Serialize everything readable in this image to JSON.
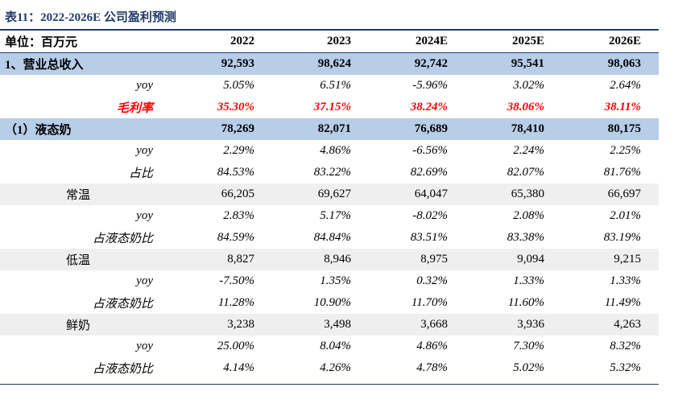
{
  "caption": "表11：2022-2026E 公司盈利预测",
  "header": [
    "单位：百万元",
    "2022",
    "2023",
    "2024E",
    "2025E",
    "2026E"
  ],
  "rows": [
    {
      "label": "1、营业总收入",
      "values": [
        "92,593",
        "98,624",
        "92,742",
        "95,541",
        "98,063"
      ]
    },
    {
      "label": "yoy",
      "values": [
        "5.05%",
        "6.51%",
        "-5.96%",
        "3.02%",
        "2.64%"
      ]
    },
    {
      "label": "毛利率",
      "values": [
        "35.30%",
        "37.15%",
        "38.24%",
        "38.06%",
        "38.11%"
      ]
    },
    {
      "label": "（1）液态奶",
      "values": [
        "78,269",
        "82,071",
        "76,689",
        "78,410",
        "80,175"
      ]
    },
    {
      "label": "yoy",
      "values": [
        "2.29%",
        "4.86%",
        "-6.56%",
        "2.24%",
        "2.25%"
      ]
    },
    {
      "label": "占比",
      "values": [
        "84.53%",
        "83.22%",
        "82.69%",
        "82.07%",
        "81.76%"
      ]
    },
    {
      "label": "常温",
      "values": [
        "66,205",
        "69,627",
        "64,047",
        "65,380",
        "66,697"
      ]
    },
    {
      "label": "yoy",
      "values": [
        "2.83%",
        "5.17%",
        "-8.02%",
        "2.08%",
        "2.01%"
      ]
    },
    {
      "label": "占液态奶比",
      "values": [
        "84.59%",
        "84.84%",
        "83.51%",
        "83.38%",
        "83.19%"
      ]
    },
    {
      "label": "低温",
      "values": [
        "8,827",
        "8,946",
        "8,975",
        "9,094",
        "9,215"
      ]
    },
    {
      "label": "yoy",
      "values": [
        "-7.50%",
        "1.35%",
        "0.32%",
        "1.33%",
        "1.33%"
      ]
    },
    {
      "label": "占液态奶比",
      "values": [
        "11.28%",
        "10.90%",
        "11.70%",
        "11.60%",
        "11.49%"
      ]
    },
    {
      "label": "鲜奶",
      "values": [
        "3,238",
        "3,498",
        "3,668",
        "3,936",
        "4,263"
      ]
    },
    {
      "label": "yoy",
      "values": [
        "25.00%",
        "8.04%",
        "4.86%",
        "7.30%",
        "8.32%"
      ]
    },
    {
      "label": "占液态奶比",
      "values": [
        "4.14%",
        "4.26%",
        "4.78%",
        "5.02%",
        "5.32%"
      ]
    }
  ],
  "colors": {
    "header_blue": "#1f3a68",
    "shade_blue": "#b7cde8",
    "shade_gray": "#efefef",
    "red": "#ff0000"
  }
}
